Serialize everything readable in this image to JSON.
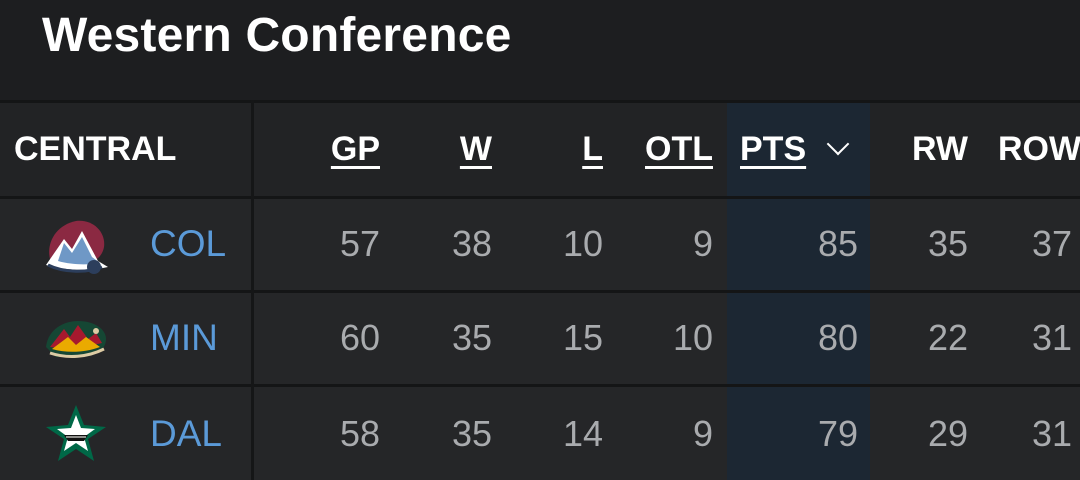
{
  "title": "Western Conference",
  "division": "CENTRAL",
  "columns": {
    "gp": "GP",
    "w": "W",
    "l": "L",
    "otl": "OTL",
    "pts": "PTS",
    "rw": "RW",
    "row": "ROW"
  },
  "sort": {
    "column": "PTS",
    "icon": "chevron-down-icon"
  },
  "colors": {
    "background": "#1d1e20",
    "team_link": "#5b9ad8",
    "pts_highlight": "#1c2733"
  },
  "teams": [
    {
      "abbr": "COL",
      "logo": "avalanche-logo-icon",
      "gp": "57",
      "w": "38",
      "l": "10",
      "otl": "9",
      "pts": "85",
      "rw": "35",
      "row": "37"
    },
    {
      "abbr": "MIN",
      "logo": "wild-logo-icon",
      "gp": "60",
      "w": "35",
      "l": "15",
      "otl": "10",
      "pts": "80",
      "rw": "22",
      "row": "31"
    },
    {
      "abbr": "DAL",
      "logo": "stars-logo-icon",
      "gp": "58",
      "w": "35",
      "l": "14",
      "otl": "9",
      "pts": "79",
      "rw": "29",
      "row": "31"
    }
  ]
}
